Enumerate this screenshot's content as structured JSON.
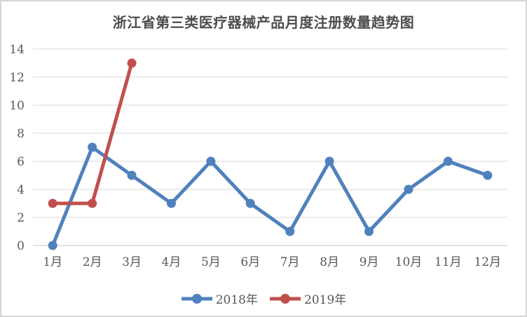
{
  "title": "浙江省第三类医疗器械产品月度注册数量趋势图",
  "colors": {
    "series_2018": "#4f81bd",
    "series_2019": "#c0504d",
    "gridline": "#d9d9d9",
    "axis_line": "#c6c6c6",
    "tick_text": "#595959",
    "title_text": "#4d4d4d",
    "frame_border": "#d6d6d6"
  },
  "chart_data": {
    "type": "line",
    "title": "浙江省第三类医疗器械产品月度注册数量趋势图",
    "categories": [
      "1月",
      "2月",
      "3月",
      "4月",
      "5月",
      "6月",
      "7月",
      "8月",
      "9月",
      "10月",
      "11月",
      "12月"
    ],
    "series": [
      {
        "name": "2018年",
        "color": "#4f81bd",
        "values": [
          0,
          7,
          5,
          3,
          6,
          3,
          1,
          6,
          1,
          4,
          6,
          5
        ]
      },
      {
        "name": "2019年",
        "color": "#c0504d",
        "values": [
          3,
          3,
          13
        ]
      }
    ],
    "xlabel": "",
    "ylabel": "",
    "ylim": [
      0,
      14
    ],
    "ytick_step": 2,
    "yticks": [
      0,
      2,
      4,
      6,
      8,
      10,
      12,
      14
    ],
    "grid": true,
    "legend_position": "bottom"
  }
}
